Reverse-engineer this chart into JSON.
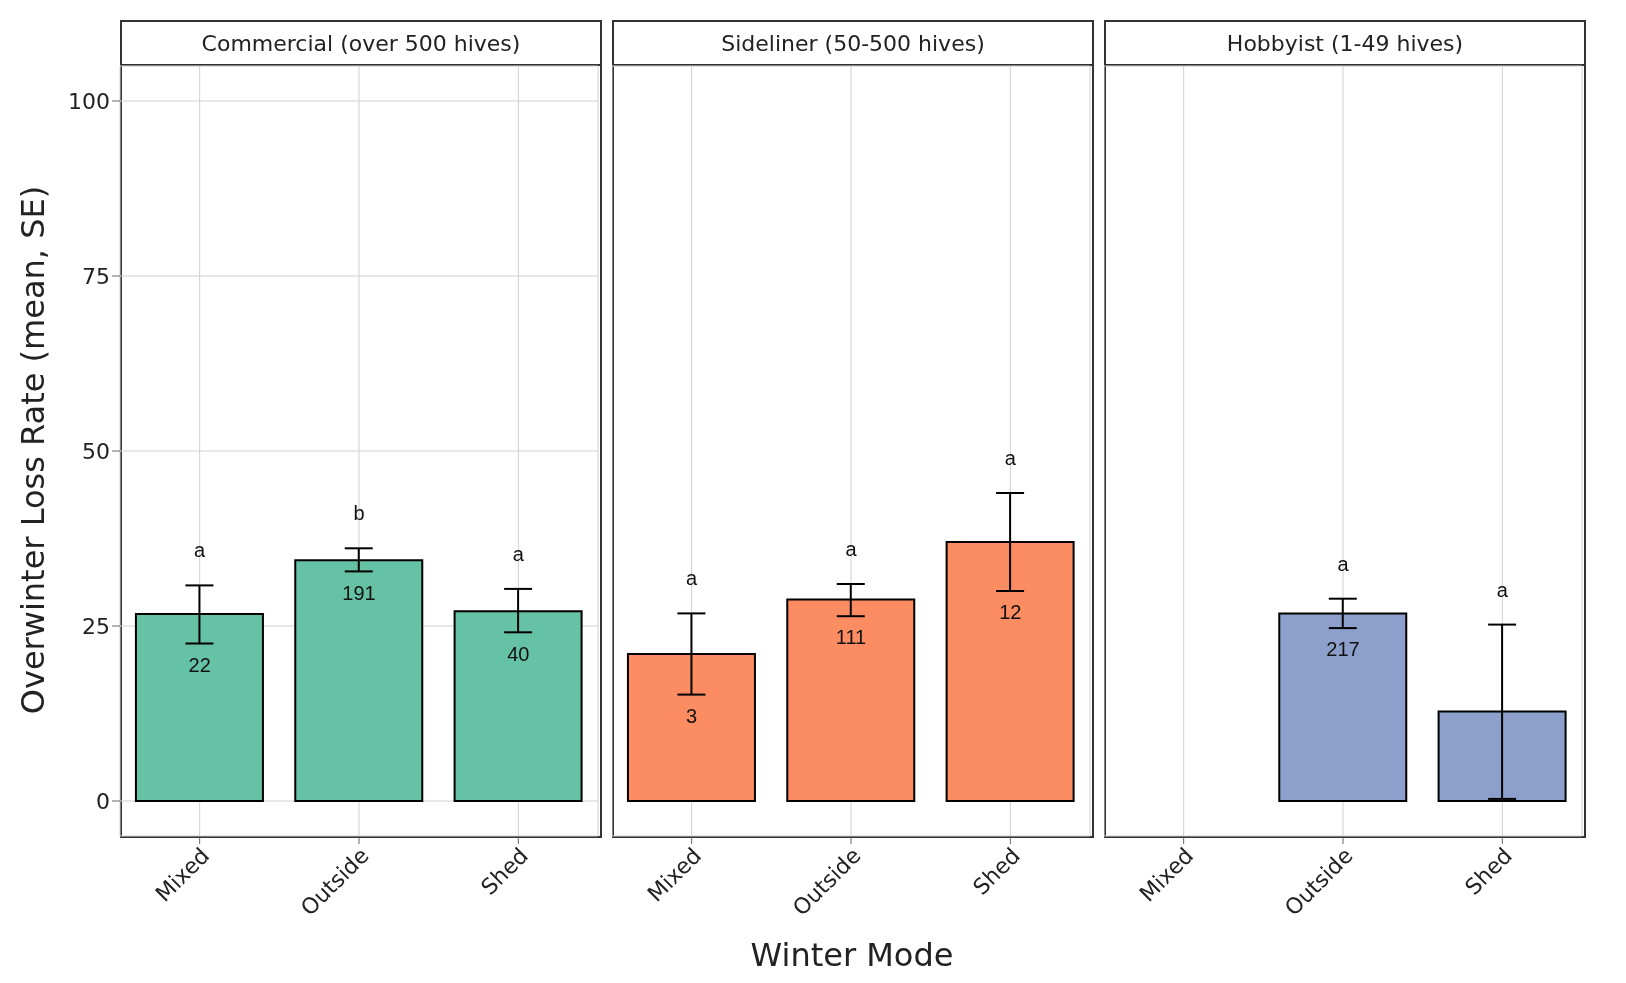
{
  "chart_data": [
    {
      "type": "bar",
      "title": "Commercial (over 500 hives)",
      "ylabel": "Overwinter Loss Rate (mean, SE)",
      "categories": [
        "Mixed",
        "Outside",
        "Shed"
      ],
      "values": [
        26.7,
        34.4,
        27.1
      ],
      "errors": [
        [
          22.5,
          30.8
        ],
        [
          32.8,
          36.1
        ],
        [
          24.1,
          30.3
        ]
      ],
      "color": "#66c2a5",
      "ylim": [
        -5,
        105
      ],
      "yticks": [
        0,
        25,
        50,
        75,
        100
      ],
      "grid": true,
      "annotations": [
        "a",
        "b",
        "a",
        "22",
        "191",
        "40"
      ]
    },
    {
      "type": "bar",
      "title": "Sideliner (50-500 hives)",
      "xlabel": "Winter Mode",
      "categories": [
        "Mixed",
        "Outside",
        "Shed"
      ],
      "values": [
        21.0,
        28.8,
        37.0
      ],
      "errors": [
        [
          15.2,
          26.8
        ],
        [
          26.4,
          31.0
        ],
        [
          30.0,
          44.0
        ]
      ],
      "color": "#fc8d62",
      "ylim": [
        -5,
        105
      ],
      "yticks": [
        0,
        25,
        50,
        75,
        100
      ],
      "grid": true,
      "tick_labels": "x",
      "annotations": [
        "a",
        "a",
        "a",
        "3",
        "111",
        "12"
      ]
    },
    {
      "type": "bar",
      "title": "Hobbyist (1-49 hives)",
      "categories": [
        "Mixed",
        "Outside",
        "Shed"
      ],
      "values": [
        null,
        26.8,
        12.8
      ],
      "errors": [
        null,
        [
          24.7,
          28.9
        ],
        [
          0.3,
          25.2
        ]
      ],
      "color": "#8da0cb",
      "ylim": [
        -5,
        105
      ],
      "yticks": [
        0,
        25,
        50,
        75,
        100
      ],
      "grid": true,
      "tick_labels": "x",
      "annotations": [
        "a",
        "a",
        "217"
      ]
    }
  ]
}
